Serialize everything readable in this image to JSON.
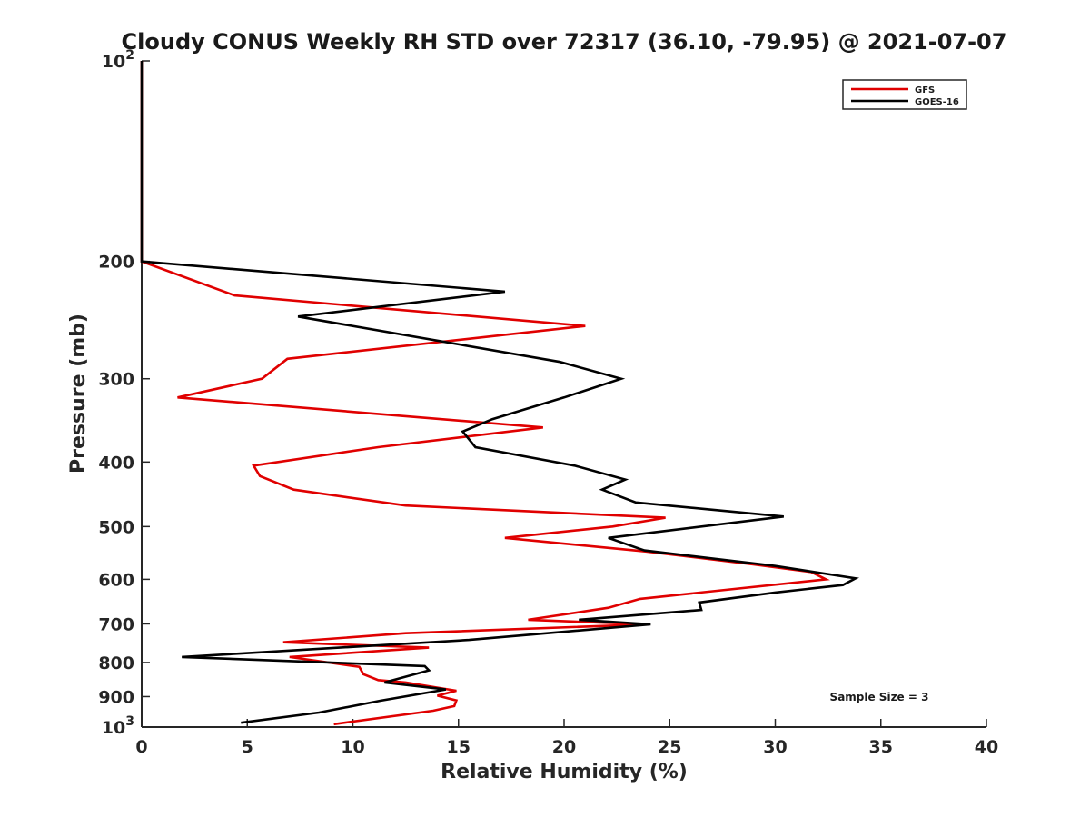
{
  "chart_data": {
    "type": "line",
    "title": "Cloudy CONUS Weekly RH STD over 72317 (36.10, -79.95) @ 2021-07-07",
    "xlabel": "Relative Humidity (%)",
    "ylabel": "Pressure (mb)",
    "xlim": [
      0,
      40
    ],
    "ylim": [
      100,
      1000
    ],
    "y_scale": "log",
    "y_reversed": true,
    "grid": false,
    "legend_position": "top-right",
    "x_ticks": [
      {
        "value": 0,
        "label": "0"
      },
      {
        "value": 5,
        "label": "5"
      },
      {
        "value": 10,
        "label": "10"
      },
      {
        "value": 15,
        "label": "15"
      },
      {
        "value": 20,
        "label": "20"
      },
      {
        "value": 25,
        "label": "25"
      },
      {
        "value": 30,
        "label": "30"
      },
      {
        "value": 35,
        "label": "35"
      },
      {
        "value": 40,
        "label": "40"
      }
    ],
    "y_ticks": [
      {
        "value": 100,
        "label": "10",
        "sup": "2"
      },
      {
        "value": 200,
        "label": "200",
        "sup": ""
      },
      {
        "value": 300,
        "label": "300",
        "sup": ""
      },
      {
        "value": 400,
        "label": "400",
        "sup": ""
      },
      {
        "value": 500,
        "label": "500",
        "sup": ""
      },
      {
        "value": 600,
        "label": "600",
        "sup": ""
      },
      {
        "value": 700,
        "label": "700",
        "sup": ""
      },
      {
        "value": 800,
        "label": "800",
        "sup": ""
      },
      {
        "value": 900,
        "label": "900",
        "sup": ""
      },
      {
        "value": 1000,
        "label": "10",
        "sup": "3"
      }
    ],
    "annotation": "Sample Size = 3",
    "series": [
      {
        "name": "GFS",
        "color": "#e00000",
        "points": [
          [
            0,
            100
          ],
          [
            0,
            200
          ],
          [
            4.4,
            225
          ],
          [
            21.0,
            250
          ],
          [
            6.9,
            280
          ],
          [
            5.7,
            300
          ],
          [
            1.7,
            320
          ],
          [
            19.0,
            355
          ],
          [
            11.2,
            380
          ],
          [
            5.3,
            405
          ],
          [
            5.6,
            420
          ],
          [
            7.2,
            440
          ],
          [
            12.5,
            465
          ],
          [
            24.8,
            485
          ],
          [
            22.3,
            500
          ],
          [
            17.2,
            520
          ],
          [
            23.9,
            545
          ],
          [
            29.0,
            570
          ],
          [
            31.7,
            585
          ],
          [
            32.4,
            600
          ],
          [
            23.6,
            642
          ],
          [
            22.1,
            662
          ],
          [
            18.3,
            690
          ],
          [
            21.8,
            697
          ],
          [
            24.0,
            701
          ],
          [
            12.5,
            723
          ],
          [
            6.7,
            746
          ],
          [
            13.6,
            760
          ],
          [
            7.0,
            785
          ],
          [
            10.3,
            812
          ],
          [
            10.5,
            833
          ],
          [
            11.2,
            850
          ],
          [
            12.5,
            857
          ],
          [
            14.9,
            882
          ],
          [
            14.0,
            897
          ],
          [
            14.9,
            912
          ],
          [
            14.8,
            930
          ],
          [
            13.8,
            945
          ],
          [
            9.1,
            990
          ]
        ]
      },
      {
        "name": "GOES-16",
        "color": "#000000",
        "points": [
          [
            0,
            100
          ],
          [
            0,
            200
          ],
          [
            17.2,
            222
          ],
          [
            7.4,
            242
          ],
          [
            19.8,
            283
          ],
          [
            22.7,
            300
          ],
          [
            20.0,
            320
          ],
          [
            16.6,
            345
          ],
          [
            15.2,
            360
          ],
          [
            15.8,
            380
          ],
          [
            20.5,
            405
          ],
          [
            22.9,
            425
          ],
          [
            21.8,
            440
          ],
          [
            23.4,
            460
          ],
          [
            30.4,
            483
          ],
          [
            22.1,
            520
          ],
          [
            23.8,
            543
          ],
          [
            30.0,
            573
          ],
          [
            33.8,
            598
          ],
          [
            33.2,
            612
          ],
          [
            30.0,
            628
          ],
          [
            26.4,
            650
          ],
          [
            26.5,
            667
          ],
          [
            20.7,
            690
          ],
          [
            24.1,
            701
          ],
          [
            15.5,
            740
          ],
          [
            1.9,
            785
          ],
          [
            13.4,
            810
          ],
          [
            13.6,
            822
          ],
          [
            11.5,
            857
          ],
          [
            14.4,
            878
          ],
          [
            11.3,
            913
          ],
          [
            8.4,
            951
          ],
          [
            4.7,
            985
          ]
        ]
      }
    ]
  }
}
